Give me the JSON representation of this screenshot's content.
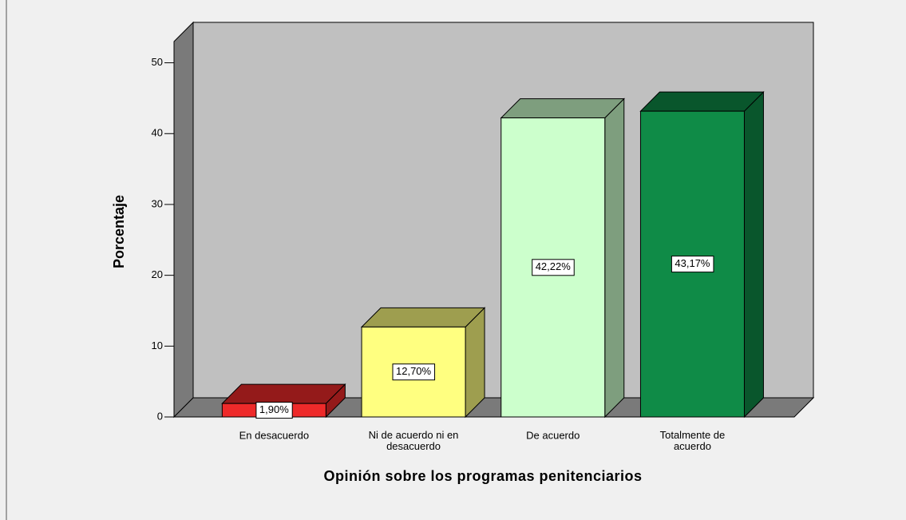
{
  "chart_data": {
    "type": "bar3d",
    "xlabel": "Opinión sobre los programas penitenciarios",
    "ylabel": "Porcentaje",
    "categories": [
      "En desacuerdo",
      "Ni de acuerdo ni en desacuerdo",
      "De acuerdo",
      "Totalmente de acuerdo"
    ],
    "values": [
      1.9,
      12.7,
      42.22,
      43.17
    ],
    "value_labels": [
      "1,90%",
      "12,70%",
      "42,22%",
      "43,17%"
    ],
    "colors": [
      "#ee2a2a",
      "#ffff80",
      "#ccffcc",
      "#0f8b47"
    ],
    "ylim": [
      0,
      53
    ],
    "yticks": [
      0,
      10,
      20,
      30,
      40,
      50
    ]
  }
}
